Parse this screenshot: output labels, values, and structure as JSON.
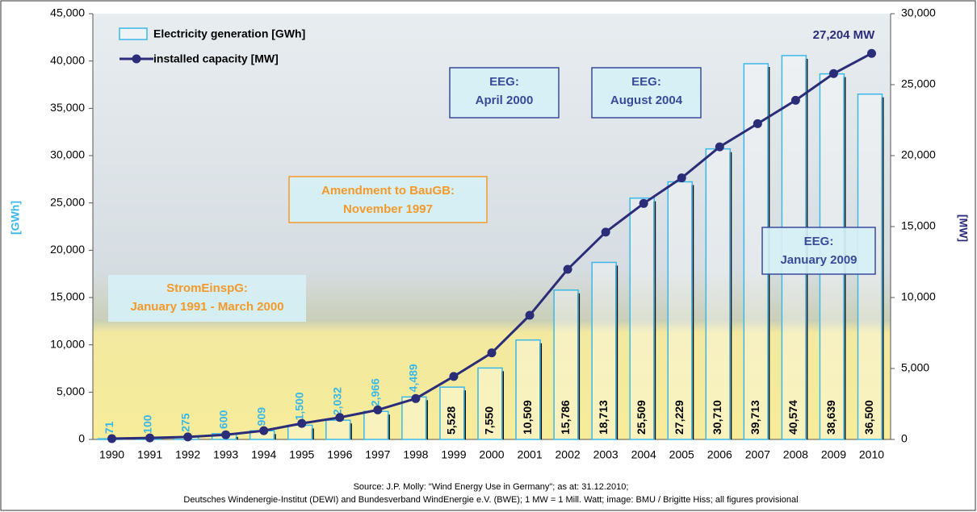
{
  "chart_data": {
    "type": "bar-line",
    "categories": [
      "1990",
      "1991",
      "1992",
      "1993",
      "1994",
      "1995",
      "1996",
      "1997",
      "1998",
      "1999",
      "2000",
      "2001",
      "2002",
      "2003",
      "2004",
      "2005",
      "2006",
      "2007",
      "2008",
      "2009",
      "2010"
    ],
    "series": [
      {
        "name": "Electricity generation [GWh]",
        "type": "bar",
        "color": "#3bb8e8",
        "values": [
          71,
          100,
          275,
          600,
          909,
          1500,
          2032,
          2966,
          4489,
          5528,
          7550,
          10509,
          15786,
          18713,
          25509,
          27229,
          30710,
          39713,
          40574,
          38639,
          36500
        ],
        "value_labels": [
          "71",
          "100",
          "275",
          "600",
          "909",
          "1,500",
          "2,032",
          "2,966",
          "4,489",
          "5,528",
          "7,550",
          "10,509",
          "15,786",
          "18,713",
          "25,509",
          "27,229",
          "30,710",
          "39,713",
          "40,574",
          "38,639",
          "36,500"
        ]
      },
      {
        "name": "installed capacity [MW]",
        "type": "line",
        "axis": "y2",
        "color": "#2b2d78",
        "values": [
          56,
          106,
          180,
          330,
          620,
          1130,
          1550,
          2080,
          2880,
          4440,
          6100,
          8750,
          11990,
          14610,
          16630,
          18430,
          20620,
          22250,
          23900,
          25780,
          27204
        ]
      }
    ],
    "ylabel": "[GWh]",
    "y2label": "[MW]",
    "ylim": [
      0,
      45000
    ],
    "yticks": [
      0,
      {
        "value": 5000,
        "label": "5,000"
      },
      {
        "value": 10000,
        "label": "10,000"
      },
      {
        "value": 15000,
        "label": "15,000"
      },
      {
        "value": 20000,
        "label": "20,000"
      },
      {
        "value": 25000,
        "label": "25,000"
      },
      {
        "value": 30000,
        "label": "30,000"
      },
      {
        "value": 35000,
        "label": "35,000"
      },
      {
        "value": 40000,
        "label": "40,000"
      },
      {
        "value": 45000,
        "label": "45,000"
      }
    ],
    "y2lim": [
      0,
      30000
    ],
    "y2ticks": [
      0,
      {
        "value": 5000,
        "label": "5,000"
      },
      {
        "value": 10000,
        "label": "10,000"
      },
      {
        "value": 15000,
        "label": "15,000"
      },
      {
        "value": 20000,
        "label": "20,000"
      },
      {
        "value": 25000,
        "label": "25,000"
      },
      {
        "value": 30000,
        "label": "30,000"
      }
    ],
    "annotations": [
      {
        "lines": [
          "EEG:",
          "April 2000"
        ],
        "color": "#3a4a9a"
      },
      {
        "lines": [
          "EEG:",
          "August 2004"
        ],
        "color": "#3a4a9a"
      },
      {
        "lines": [
          "Amendment to BauGB:",
          "November 1997"
        ],
        "color": "#f39a2b"
      },
      {
        "lines": [
          "StromEinspG:",
          "January 1991 - March 2000"
        ],
        "color": "#f39a2b"
      },
      {
        "lines": [
          "EEG:",
          "January 2009"
        ],
        "color": "#3a4a9a"
      },
      {
        "lines": [
          "27,204 MW"
        ],
        "color": "#2b2d78"
      }
    ],
    "source": [
      "Source: J.P. Molly: \"Wind Energy Use in Germany\"; as at: 31.12.2010;",
      "Deutsches Windenergie-Institut (DEWI) and Bundesverband WindEnergie e.V. (BWE); 1 MW = 1 Mill. Watt; image: BMU / Brigitte Hiss; all figures provisional"
    ]
  }
}
